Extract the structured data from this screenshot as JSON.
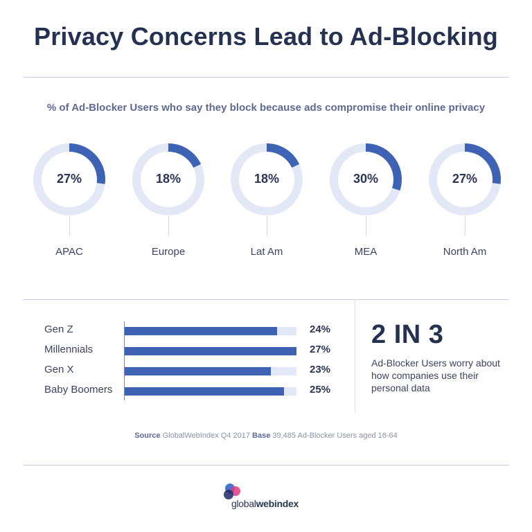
{
  "title": "Privacy Concerns Lead to Ad-Blocking",
  "subtitle": "% of Ad-Blocker Users who say they block because ads compromise their online privacy",
  "colors": {
    "accent": "#3e63b5",
    "track": "#e3e8f7",
    "title": "#253150"
  },
  "chart_data": [
    {
      "type": "pie",
      "title": "% of Ad-Blocker Users who say they block because ads compromise their online privacy",
      "categories": [
        "APAC",
        "Europe",
        "Lat Am",
        "MEA",
        "North Am"
      ],
      "values": [
        27,
        18,
        18,
        30,
        27
      ],
      "labels": [
        "27%",
        "18%",
        "18%",
        "30%",
        "27%"
      ]
    },
    {
      "type": "bar",
      "categories": [
        "Gen Z",
        "Millennials",
        "Gen X",
        "Baby Boomers"
      ],
      "values": [
        24,
        27,
        23,
        25
      ],
      "labels": [
        "24%",
        "27%",
        "23%",
        "25%"
      ],
      "xlim": [
        0,
        27
      ]
    }
  ],
  "highlight": {
    "stat": "2 IN 3",
    "text": "Ad-Blocker Users worry about how companies use their personal data"
  },
  "source": {
    "source_label": "Source",
    "source_text": "GlobalWebIndex Q4 2017",
    "base_label": "Base",
    "base_text": "39,485 Ad-Blocker Users aged 16-64"
  },
  "logo": {
    "part1": "global",
    "part2": "webindex"
  }
}
